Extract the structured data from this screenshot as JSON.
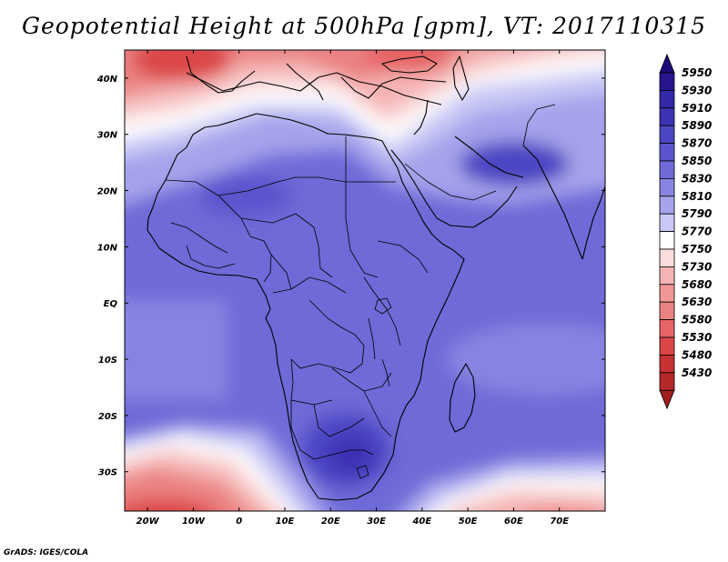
{
  "title": "Geopotential Height at 500hPa [gpm], VT: 2017110315",
  "credit": "GrADS: IGES/COLA",
  "map": {
    "lon_range": [
      -25,
      80
    ],
    "lat_range": [
      -37,
      45
    ],
    "lon_ticks": [
      {
        "value": -20,
        "label": "20W"
      },
      {
        "value": -10,
        "label": "10W"
      },
      {
        "value": 0,
        "label": "0"
      },
      {
        "value": 10,
        "label": "10E"
      },
      {
        "value": 20,
        "label": "20E"
      },
      {
        "value": 30,
        "label": "30E"
      },
      {
        "value": 40,
        "label": "40E"
      },
      {
        "value": 50,
        "label": "50E"
      },
      {
        "value": 60,
        "label": "60E"
      },
      {
        "value": 70,
        "label": "70E"
      }
    ],
    "lat_ticks": [
      {
        "value": 40,
        "label": "40N"
      },
      {
        "value": 30,
        "label": "30N"
      },
      {
        "value": 20,
        "label": "20N"
      },
      {
        "value": 10,
        "label": "10N"
      },
      {
        "value": 0,
        "label": "EQ"
      },
      {
        "value": -10,
        "label": "10S"
      },
      {
        "value": -20,
        "label": "20S"
      },
      {
        "value": -30,
        "label": "30S"
      }
    ]
  },
  "colorbar": {
    "levels": [
      {
        "label": "5950",
        "color": "#28148c"
      },
      {
        "label": "5930",
        "color": "#3228a8"
      },
      {
        "label": "5910",
        "color": "#3c32b4"
      },
      {
        "label": "5890",
        "color": "#4b46c3"
      },
      {
        "label": "5870",
        "color": "#5a55cd"
      },
      {
        "label": "5850",
        "color": "#6e6ad7"
      },
      {
        "label": "5830",
        "color": "#8784e1"
      },
      {
        "label": "5810",
        "color": "#a5a3eb"
      },
      {
        "label": "5790",
        "color": "#c8c7f5"
      },
      {
        "label": "5770",
        "color": "#ffffff"
      },
      {
        "label": "5750",
        "color": "#fadcdc"
      },
      {
        "label": "5730",
        "color": "#f5b4b4"
      },
      {
        "label": "5680",
        "color": "#f09696"
      },
      {
        "label": "5630",
        "color": "#eb8282"
      },
      {
        "label": "5580",
        "color": "#e66464"
      },
      {
        "label": "5530",
        "color": "#dc4646"
      },
      {
        "label": "5480",
        "color": "#c83232"
      },
      {
        "label": "5430",
        "color": "#b42828"
      }
    ],
    "top_arrow_color": "#1e0a78",
    "bottom_arrow_color": "#a01e1e"
  }
}
